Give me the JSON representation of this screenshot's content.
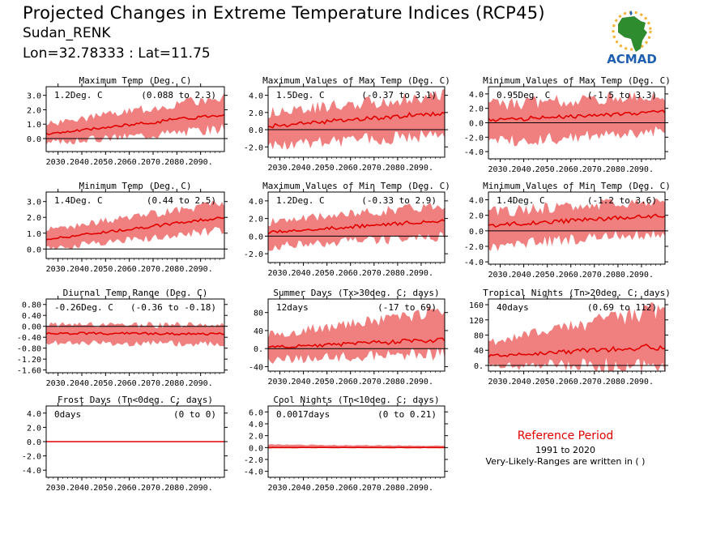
{
  "header": {
    "title": "Projected Changes in Extreme Temperature Indices (RCP45)",
    "location": "Sudan_RENK",
    "coords": "Lon=32.78333 : Lat=11.75"
  },
  "logo": {
    "text": "ACMAD",
    "icon": "africa-map-logo-icon",
    "brand_color": "#1f5fb0",
    "map_color": "#2e8b2e"
  },
  "reference": {
    "title": "Reference Period",
    "years": "1991 to 2020",
    "note": "Very-Likely-Ranges are written in ( )"
  },
  "colors": {
    "band": "#f08080",
    "line": "#e00000",
    "zero": "#000000"
  },
  "chart_data": [
    {
      "type": "area",
      "title": "Maximum Temp (Deg. C)",
      "mean": "1.2Deg. C",
      "range": "(0.088 to 2.3)",
      "yticks": [
        "3.0",
        "2.0",
        "1.0",
        "0.0"
      ],
      "ylim": [
        -0.9,
        3.6
      ],
      "x_ticks": [
        "2030.",
        "2040.",
        "2050.",
        "2060.",
        "2070.",
        "2080.",
        "2090."
      ],
      "series": [
        {
          "x": [
            2025,
            2100
          ],
          "y": [
            0.3,
            1.7
          ]
        }
      ],
      "band": {
        "lo": [
          -0.3,
          0.7
        ],
        "hi": [
          1.0,
          2.9
        ]
      }
    },
    {
      "type": "area",
      "title": "Maximum Values of Max Temp (Deg. C)",
      "mean": "1.5Deg. C",
      "range": "(-0.37 to 3.1)",
      "yticks": [
        "4.0",
        "2.0",
        "0.0",
        "-2.0"
      ],
      "ylim": [
        -3.2,
        5.0
      ],
      "x_ticks": [
        "2030.",
        "2040.",
        "2050.",
        "2060.",
        "2070.",
        "2080.",
        "2090."
      ],
      "series": [
        {
          "x": [
            2025,
            2100
          ],
          "y": [
            0.4,
            2.0
          ]
        }
      ],
      "band": {
        "lo": [
          -1.8,
          -0.6
        ],
        "hi": [
          2.0,
          4.0
        ]
      }
    },
    {
      "type": "area",
      "title": "Minimum Values of Max Temp (Deg. C)",
      "mean": "0.95Deg. C",
      "range": "(-1.5 to 3.3)",
      "yticks": [
        "4.0",
        "2.0",
        "0.0",
        "-2.0",
        "-4.0"
      ],
      "ylim": [
        -5.0,
        5.0
      ],
      "x_ticks": [
        "2030.",
        "2040.",
        "2050.",
        "2060.",
        "2070.",
        "2080.",
        "2090."
      ],
      "series": [
        {
          "x": [
            2025,
            2100
          ],
          "y": [
            0.3,
            1.5
          ]
        }
      ],
      "band": {
        "lo": [
          -2.8,
          -1.0
        ],
        "hi": [
          2.5,
          3.8
        ]
      }
    },
    {
      "type": "area",
      "title": "Minimum Temp (Deg. C)",
      "mean": "1.4Deg. C",
      "range": "(0.44 to 2.5)",
      "yticks": [
        "3.0",
        "2.0",
        "1.0",
        "0.0"
      ],
      "ylim": [
        -0.6,
        3.6
      ],
      "x_ticks": [
        "2030.",
        "2040.",
        "2050.",
        "2060.",
        "2070.",
        "2080.",
        "2090."
      ],
      "series": [
        {
          "x": [
            2025,
            2100
          ],
          "y": [
            0.6,
            2.0
          ]
        }
      ],
      "band": {
        "lo": [
          0.0,
          1.2
        ],
        "hi": [
          1.2,
          2.9
        ]
      }
    },
    {
      "type": "area",
      "title": "Maximum Values of Min Temp (Deg. C)",
      "mean": "1.2Deg. C",
      "range": "(-0.33 to 2.9)",
      "yticks": [
        "4.0",
        "2.0",
        "0.0",
        "-2.0"
      ],
      "ylim": [
        -3.0,
        5.0
      ],
      "x_ticks": [
        "2030.",
        "2040.",
        "2050.",
        "2060.",
        "2070.",
        "2080.",
        "2090."
      ],
      "series": [
        {
          "x": [
            2025,
            2100
          ],
          "y": [
            0.4,
            1.8
          ]
        }
      ],
      "band": {
        "lo": [
          -1.2,
          0.0
        ],
        "hi": [
          1.6,
          3.6
        ]
      }
    },
    {
      "type": "area",
      "title": "Minimum Values of Min Temp (Deg. C)",
      "mean": "1.4Deg. C",
      "range": "(-1.2 to 3.6)",
      "yticks": [
        "4.0",
        "2.0",
        "0.0",
        "-2.0",
        "-4.0"
      ],
      "ylim": [
        -4.3,
        5.0
      ],
      "x_ticks": [
        "2030.",
        "2040.",
        "2050.",
        "2060.",
        "2070.",
        "2080.",
        "2090."
      ],
      "series": [
        {
          "x": [
            2025,
            2100
          ],
          "y": [
            0.7,
            2.0
          ]
        }
      ],
      "band": {
        "lo": [
          -2.0,
          -0.2
        ],
        "hi": [
          2.4,
          4.0
        ]
      }
    },
    {
      "type": "area",
      "title": "Diurnal Temp Range (Deg. C)",
      "mean": "-0.26Deg. C",
      "range": "(-0.36 to -0.18)",
      "yticks": [
        "0.80",
        "0.40",
        "0.00",
        "-0.40",
        "-0.80",
        "-1.20",
        "-1.60"
      ],
      "ylim": [
        -1.7,
        1.0
      ],
      "x_ticks": [
        "2030.",
        "2040.",
        "2050.",
        "2060.",
        "2070.",
        "2080.",
        "2090."
      ],
      "series": [
        {
          "x": [
            2025,
            2100
          ],
          "y": [
            -0.25,
            -0.28
          ]
        }
      ],
      "band": {
        "lo": [
          -0.6,
          -0.65
        ],
        "hi": [
          0.05,
          0.05
        ]
      }
    },
    {
      "type": "area",
      "title": "Summer Days (Tx>30deg. C; days)",
      "mean": "12days",
      "range": "(-17 to 69)",
      "yticks": [
        "80",
        "40",
        "0.",
        "-40"
      ],
      "ylim": [
        -50,
        110
      ],
      "x_ticks": [
        "2030.",
        "2040.",
        "2050.",
        "2060.",
        "2070.",
        "2080.",
        "2090."
      ],
      "series": [
        {
          "x": [
            2025,
            2100
          ],
          "y": [
            2,
            20
          ]
        }
      ],
      "band": {
        "lo": [
          -25,
          -10
        ],
        "hi": [
          30,
          85
        ]
      }
    },
    {
      "type": "area",
      "title": "Tropical Nights (Tn>20deg. C; days)",
      "mean": "40days",
      "range": "(0.69 to 112)",
      "yticks": [
        "160",
        "120",
        "80",
        "40",
        "0."
      ],
      "ylim": [
        -15,
        175
      ],
      "x_ticks": [
        "2030.",
        "2040.",
        "2050.",
        "2060.",
        "2070.",
        "2080.",
        "2090."
      ],
      "series": [
        {
          "x": [
            2025,
            2100
          ],
          "y": [
            25,
            50
          ]
        }
      ],
      "band": {
        "lo": [
          0,
          0
        ],
        "hi": [
          60,
          150
        ]
      }
    },
    {
      "type": "area",
      "title": "Frost Days (Tn<0deg. C; days)",
      "mean": "0days",
      "range": "(0 to 0)",
      "yticks": [
        "4.0",
        "2.0",
        "0.0",
        "-2.0",
        "-4.0"
      ],
      "ylim": [
        -5.0,
        5.0
      ],
      "x_ticks": [
        "2030.",
        "2040.",
        "2050.",
        "2060.",
        "2070.",
        "2080.",
        "2090."
      ],
      "series": [
        {
          "x": [
            2025,
            2100
          ],
          "y": [
            0,
            0
          ]
        }
      ],
      "band": {
        "lo": [
          0,
          0
        ],
        "hi": [
          0,
          0
        ]
      }
    },
    {
      "type": "area",
      "title": "Cool Nights (Tn<10deg. C; days)",
      "mean": "0.0017days",
      "range": "(0 to 0.21)",
      "yticks": [
        "6.0",
        "4.0",
        "2.0",
        "0.0",
        "-2.0",
        "-4.0"
      ],
      "ylim": [
        -5.0,
        7.0
      ],
      "x_ticks": [
        "2030.",
        "2040.",
        "2050.",
        "2060.",
        "2070.",
        "2080.",
        "2090."
      ],
      "series": [
        {
          "x": [
            2025,
            2100
          ],
          "y": [
            0.0,
            0.0
          ]
        }
      ],
      "band": {
        "lo": [
          0,
          0
        ],
        "hi": [
          0.5,
          0.3
        ]
      }
    }
  ]
}
